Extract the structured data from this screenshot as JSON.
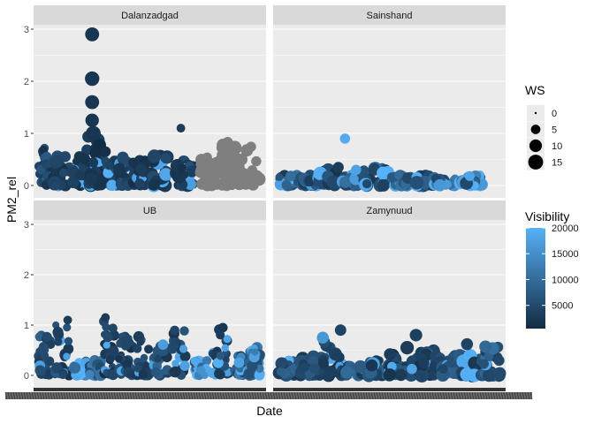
{
  "chart_data": {
    "type": "scatter",
    "xlabel": "Date",
    "ylabel": "PM2_rel",
    "ylim": [
      0,
      3
    ],
    "y_ticks": [
      0,
      1,
      2,
      3
    ],
    "facets": [
      {
        "name": "Dalanzadgad",
        "clusters": [
          {
            "x0": 0.0,
            "x1": 0.05,
            "ymax": 0.75,
            "ws": 5,
            "vis": 4000
          },
          {
            "x0": 0.06,
            "x1": 0.14,
            "ymax": 0.6,
            "ws": 9,
            "vis": 3000
          },
          {
            "x0": 0.15,
            "x1": 0.23,
            "ymax": 0.7,
            "ws": 8,
            "vis": 2500
          },
          {
            "x0": 0.22,
            "x1": 0.3,
            "ymax": 1.0,
            "ws": 11,
            "vis": 2000
          },
          {
            "x0": 0.3,
            "x1": 0.36,
            "ymax": 0.5,
            "ws": 9,
            "vis": 3500
          },
          {
            "x0": 0.36,
            "x1": 0.42,
            "ymax": 0.6,
            "ws": 8,
            "vis": 3000
          },
          {
            "x0": 0.42,
            "x1": 0.48,
            "ymax": 0.5,
            "ws": 8,
            "vis": 2500
          },
          {
            "x0": 0.5,
            "x1": 0.58,
            "ymax": 0.6,
            "ws": 10,
            "vis": 3000
          },
          {
            "x0": 0.62,
            "x1": 0.7,
            "ymax": 0.5,
            "ws": 10,
            "vis": 3500
          },
          {
            "x0": 0.72,
            "x1": 0.8,
            "ymax": 0.55,
            "ws": 8,
            "vis": null
          },
          {
            "x0": 0.8,
            "x1": 0.9,
            "ymax": 0.85,
            "ws": 10,
            "vis": null
          },
          {
            "x0": 0.9,
            "x1": 1.0,
            "ymax": 0.8,
            "ws": 9,
            "vis": null
          }
        ],
        "extras": [
          {
            "x": 0.24,
            "y": 2.9,
            "ws": 13,
            "vis": 2000
          },
          {
            "x": 0.24,
            "y": 2.05,
            "ws": 14,
            "vis": 2000
          },
          {
            "x": 0.24,
            "y": 1.6,
            "ws": 13,
            "vis": 2000
          },
          {
            "x": 0.24,
            "y": 1.25,
            "ws": 12,
            "vis": 2000
          },
          {
            "x": 0.245,
            "y": 1.0,
            "ws": 15,
            "vis": 2000
          },
          {
            "x": 0.64,
            "y": 1.1,
            "ws": 4,
            "vis": 3000
          },
          {
            "x": 0.74,
            "y": 0.5,
            "ws": 7,
            "vis": null
          }
        ]
      },
      {
        "name": "Sainshand",
        "clusters": [
          {
            "x0": 0.0,
            "x1": 0.1,
            "ymax": 0.2,
            "ws": 8,
            "vis": 6000
          },
          {
            "x0": 0.1,
            "x1": 0.18,
            "ymax": 0.25,
            "ws": 9,
            "vis": 5000
          },
          {
            "x0": 0.18,
            "x1": 0.28,
            "ymax": 0.3,
            "ws": 10,
            "vis": 4000
          },
          {
            "x0": 0.28,
            "x1": 0.38,
            "ymax": 0.2,
            "ws": 9,
            "vis": 8000
          },
          {
            "x0": 0.38,
            "x1": 0.5,
            "ymax": 0.35,
            "ws": 11,
            "vis": 6000
          },
          {
            "x0": 0.5,
            "x1": 0.58,
            "ymax": 0.2,
            "ws": 9,
            "vis": 9000
          },
          {
            "x0": 0.58,
            "x1": 0.7,
            "ymax": 0.2,
            "ws": 10,
            "vis": 5000
          },
          {
            "x0": 0.7,
            "x1": 0.8,
            "ymax": 0.15,
            "ws": 8,
            "vis": 10000
          },
          {
            "x0": 0.82,
            "x1": 0.92,
            "ymax": 0.2,
            "ws": 9,
            "vis": 12000
          }
        ],
        "extras": [
          {
            "x": 0.3,
            "y": 0.9,
            "ws": 6,
            "vis": 19000
          },
          {
            "x": 0.27,
            "y": 0.35,
            "ws": 7,
            "vis": 3000
          },
          {
            "x": 0.35,
            "y": 0.3,
            "ws": 6,
            "vis": 18000
          }
        ]
      },
      {
        "name": "UB",
        "clusters": [
          {
            "x0": 0.0,
            "x1": 0.06,
            "ymax": 0.8,
            "ws": 6,
            "vis": 5000
          },
          {
            "x0": 0.07,
            "x1": 0.14,
            "ymax": 1.1,
            "ws": 6,
            "vis": 4000
          },
          {
            "x0": 0.16,
            "x1": 0.22,
            "ymax": 0.3,
            "ws": 7,
            "vis": 15000
          },
          {
            "x0": 0.22,
            "x1": 0.28,
            "ymax": 0.3,
            "ws": 7,
            "vis": 9000
          },
          {
            "x0": 0.29,
            "x1": 0.34,
            "ymax": 1.1,
            "ws": 6,
            "vis": 3000
          },
          {
            "x0": 0.36,
            "x1": 0.42,
            "ymax": 0.8,
            "ws": 6,
            "vis": 4000
          },
          {
            "x0": 0.44,
            "x1": 0.5,
            "ymax": 0.8,
            "ws": 6,
            "vis": 4000
          },
          {
            "x0": 0.52,
            "x1": 0.58,
            "ymax": 0.7,
            "ws": 6,
            "vis": 5000
          },
          {
            "x0": 0.6,
            "x1": 0.66,
            "ymax": 0.95,
            "ws": 6,
            "vis": 4000
          },
          {
            "x0": 0.7,
            "x1": 0.76,
            "ymax": 0.3,
            "ws": 7,
            "vis": 14000
          },
          {
            "x0": 0.78,
            "x1": 0.86,
            "ymax": 1.0,
            "ws": 6,
            "vis": 4000
          },
          {
            "x0": 0.88,
            "x1": 0.94,
            "ymax": 0.4,
            "ws": 6,
            "vis": 8000
          },
          {
            "x0": 0.94,
            "x1": 1.0,
            "ymax": 0.7,
            "ws": 6,
            "vis": 12000
          }
        ],
        "extras": [
          {
            "x": 0.13,
            "y": 1.1,
            "ws": 4,
            "vis": 3000
          },
          {
            "x": 0.3,
            "y": 1.15,
            "ws": 4,
            "vis": 3000
          }
        ]
      },
      {
        "name": "Zamynuud",
        "clusters": [
          {
            "x0": 0.0,
            "x1": 0.1,
            "ymax": 0.35,
            "ws": 9,
            "vis": 5000
          },
          {
            "x0": 0.1,
            "x1": 0.2,
            "ymax": 0.4,
            "ws": 10,
            "vis": 4000
          },
          {
            "x0": 0.2,
            "x1": 0.3,
            "ymax": 0.7,
            "ws": 10,
            "vis": 3000
          },
          {
            "x0": 0.3,
            "x1": 0.4,
            "ymax": 0.2,
            "ws": 9,
            "vis": 6000
          },
          {
            "x0": 0.4,
            "x1": 0.5,
            "ymax": 0.3,
            "ws": 10,
            "vis": 5000
          },
          {
            "x0": 0.5,
            "x1": 0.6,
            "ymax": 0.45,
            "ws": 11,
            "vis": 4000
          },
          {
            "x0": 0.6,
            "x1": 0.72,
            "ymax": 0.5,
            "ws": 12,
            "vis": 3000
          },
          {
            "x0": 0.72,
            "x1": 0.82,
            "ymax": 0.4,
            "ws": 10,
            "vis": 5000
          },
          {
            "x0": 0.82,
            "x1": 0.92,
            "ymax": 0.5,
            "ws": 11,
            "vis": 4000
          },
          {
            "x0": 0.92,
            "x1": 1.0,
            "ymax": 0.6,
            "ws": 9,
            "vis": 6000
          }
        ],
        "extras": [
          {
            "x": 0.28,
            "y": 0.9,
            "ws": 8,
            "vis": 4000
          },
          {
            "x": 0.2,
            "y": 0.75,
            "ws": 9,
            "vis": 16000
          },
          {
            "x": 0.62,
            "y": 0.8,
            "ws": 10,
            "vis": 3500
          },
          {
            "x": 0.58,
            "y": 0.55,
            "ws": 12,
            "vis": 3000
          },
          {
            "x": 0.85,
            "y": 0.62,
            "ws": 9,
            "vis": 4000
          }
        ]
      }
    ],
    "legend_size": {
      "title": "WS",
      "entries": [
        0,
        5,
        10,
        15
      ]
    },
    "legend_color": {
      "title": "Visibility",
      "min": 500,
      "max": 20000,
      "ticks": [
        5000,
        10000,
        15000,
        20000
      ],
      "low_color": "#132B43",
      "high_color": "#56B1F7",
      "na_color": "#7F7F7F"
    },
    "colors": {
      "panel_bg": "#EBEBEB",
      "strip_bg": "#D9D9D9",
      "grid": "#FFFFFF"
    }
  }
}
